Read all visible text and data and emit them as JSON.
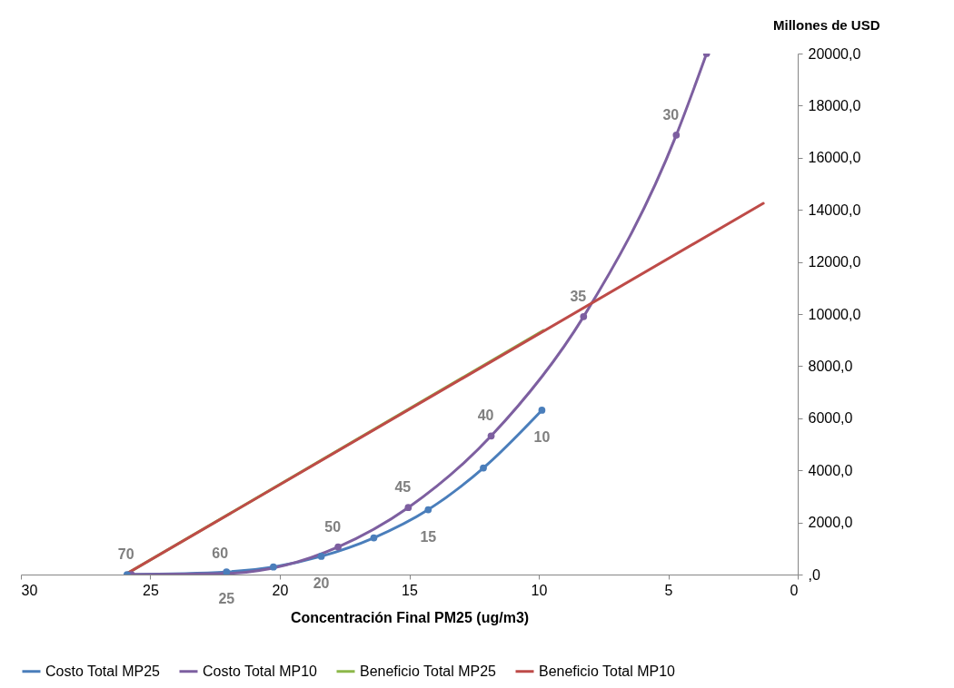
{
  "chart_data": {
    "type": "line",
    "xlabel": "Concentración Final PM25 (ug/m3)",
    "ylabel": "Millones de USD",
    "xlim": [
      30,
      0
    ],
    "xticks": [
      30,
      25,
      20,
      15,
      10,
      5,
      0
    ],
    "ylim": [
      0,
      20000
    ],
    "yticks": [
      {
        "value": 0,
        "label": ",0"
      },
      {
        "value": 2000,
        "label": "2000,0"
      },
      {
        "value": 4000,
        "label": "4000,0"
      },
      {
        "value": 6000,
        "label": "6000,0"
      },
      {
        "value": 8000,
        "label": "8000,0"
      },
      {
        "value": 10000,
        "label": "10000,0"
      },
      {
        "value": 12000,
        "label": "12000,0"
      },
      {
        "value": 14000,
        "label": "14000,0"
      },
      {
        "value": 16000,
        "label": "16000,0"
      },
      {
        "value": 18000,
        "label": "18000,0"
      },
      {
        "value": 20000,
        "label": "20000,0"
      }
    ],
    "grid": false,
    "legend": "bottom",
    "line_style": "solid",
    "series": [
      {
        "name": "Costo Total MP25",
        "color": "#4a7ebb",
        "marker": "circle",
        "x": [
          25.9,
          22.06,
          20.25,
          18.4,
          16.37,
          14.27,
          12.14,
          9.88
        ],
        "values": [
          0,
          100,
          290,
          700,
          1410,
          2490,
          4090,
          6310
        ]
      },
      {
        "name": "Costo Total MP10",
        "color": "#7d5fa0",
        "marker": "circle",
        "x": [
          25.73,
          22.1,
          17.75,
          15.04,
          11.84,
          8.27,
          4.69,
          3.52
        ],
        "values": [
          0,
          40,
          1060,
          2570,
          5320,
          9900,
          16870,
          20000
        ]
      },
      {
        "name": "Beneficio Total MP25",
        "color": "#8cb84a",
        "marker": "none",
        "x": [
          25.9,
          9.82
        ],
        "values": [
          40,
          9370
        ]
      },
      {
        "name": "Beneficio Total MP10",
        "color": "#be4b48",
        "marker": "none",
        "x": [
          25.9,
          1.33
        ],
        "values": [
          40,
          14250
        ]
      }
    ],
    "annotations": [
      {
        "text": "25",
        "x": 22.06,
        "y": 100
      },
      {
        "text": "20",
        "x": 18.4,
        "y": 700
      },
      {
        "text": "15",
        "x": 14.27,
        "y": 2490
      },
      {
        "text": "10",
        "x": 9.88,
        "y": 6310
      },
      {
        "text": "70",
        "x": 25.73,
        "y": 0
      },
      {
        "text": "60",
        "x": 22.1,
        "y": 40
      },
      {
        "text": "50",
        "x": 17.75,
        "y": 1060
      },
      {
        "text": "45",
        "x": 15.04,
        "y": 2570
      },
      {
        "text": "40",
        "x": 11.84,
        "y": 5320
      },
      {
        "text": "35",
        "x": 8.27,
        "y": 9900
      },
      {
        "text": "30",
        "x": 4.69,
        "y": 16870
      }
    ]
  }
}
